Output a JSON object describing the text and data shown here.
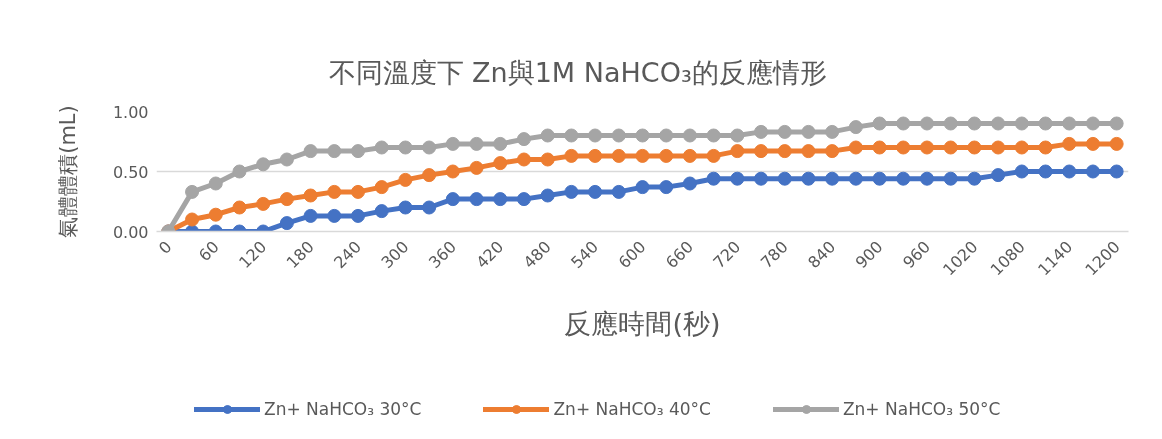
{
  "chart_data": {
    "type": "line",
    "title": "不同溫度下 Zn與1M NaHCO₃的反應情形",
    "xlabel": "反應時間(秒)",
    "ylabel": "氣體體積(mL)",
    "x": [
      0,
      30,
      60,
      90,
      120,
      150,
      180,
      210,
      240,
      270,
      300,
      330,
      360,
      390,
      420,
      450,
      480,
      510,
      540,
      570,
      600,
      630,
      660,
      690,
      720,
      750,
      780,
      810,
      840,
      870,
      900,
      930,
      960,
      990,
      1020,
      1050,
      1080,
      1110,
      1140,
      1170,
      1200
    ],
    "xlim": [
      -15,
      1215
    ],
    "xticks": [
      0,
      60,
      120,
      180,
      240,
      300,
      360,
      420,
      480,
      540,
      600,
      660,
      720,
      780,
      840,
      900,
      960,
      1020,
      1080,
      1140,
      1200
    ],
    "ylim": [
      0,
      1
    ],
    "yticks": [
      {
        "value": 0,
        "label": "0.00"
      },
      {
        "value": 0.5,
        "label": "0.50"
      },
      {
        "value": 1,
        "label": "1.00"
      }
    ],
    "grid": "y",
    "legend": "bottom",
    "marker": "circle",
    "series": [
      {
        "name": "Zn+ NaHCO₃ 30°C",
        "color": "#4472c4",
        "values": [
          0,
          0,
          0,
          0,
          0,
          0.07,
          0.13,
          0.13,
          0.13,
          0.17,
          0.2,
          0.2,
          0.27,
          0.27,
          0.27,
          0.27,
          0.3,
          0.33,
          0.33,
          0.33,
          0.37,
          0.37,
          0.4,
          0.44,
          0.44,
          0.44,
          0.44,
          0.44,
          0.44,
          0.44,
          0.44,
          0.44,
          0.44,
          0.44,
          0.44,
          0.47,
          0.5,
          0.5,
          0.5,
          0.5,
          0.5
        ]
      },
      {
        "name": "Zn+ NaHCO₃ 40°C",
        "color": "#ed7d31",
        "values": [
          0,
          0.1,
          0.14,
          0.2,
          0.23,
          0.27,
          0.3,
          0.33,
          0.33,
          0.37,
          0.43,
          0.47,
          0.5,
          0.53,
          0.57,
          0.6,
          0.6,
          0.63,
          0.63,
          0.63,
          0.63,
          0.63,
          0.63,
          0.63,
          0.67,
          0.67,
          0.67,
          0.67,
          0.67,
          0.7,
          0.7,
          0.7,
          0.7,
          0.7,
          0.7,
          0.7,
          0.7,
          0.7,
          0.73,
          0.73,
          0.73
        ]
      },
      {
        "name": "Zn+ NaHCO₃ 50°C",
        "color": "#a5a5a5",
        "values": [
          0,
          0.33,
          0.4,
          0.5,
          0.56,
          0.6,
          0.67,
          0.67,
          0.67,
          0.7,
          0.7,
          0.7,
          0.73,
          0.73,
          0.73,
          0.77,
          0.8,
          0.8,
          0.8,
          0.8,
          0.8,
          0.8,
          0.8,
          0.8,
          0.8,
          0.83,
          0.83,
          0.83,
          0.83,
          0.87,
          0.9,
          0.9,
          0.9,
          0.9,
          0.9,
          0.9,
          0.9,
          0.9,
          0.9,
          0.9,
          0.9
        ]
      }
    ]
  }
}
